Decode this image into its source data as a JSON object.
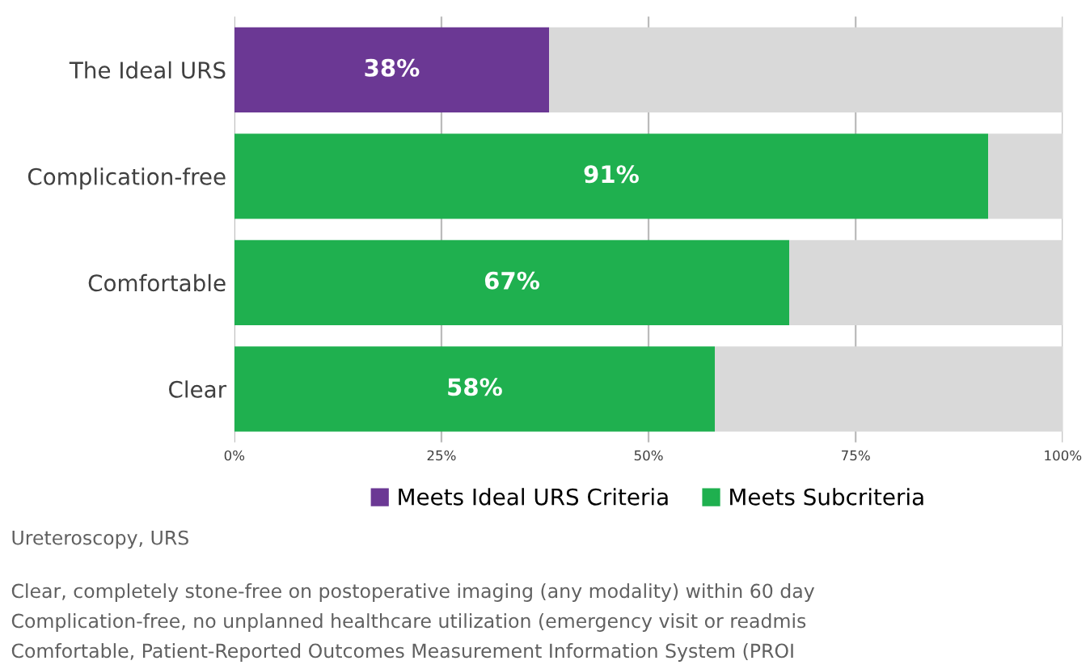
{
  "chart_data": {
    "type": "bar",
    "orientation": "horizontal",
    "stacked": true,
    "categories": [
      "The Ideal URS",
      "Complication-free",
      "Comfortable",
      "Clear"
    ],
    "series": [
      {
        "name": "Meets Ideal URS Criteria",
        "color": "#6b3894",
        "values": [
          38,
          null,
          null,
          null
        ],
        "value_labels": [
          "38%",
          null,
          null,
          null
        ]
      },
      {
        "name": "Meets Subcriteria",
        "color": "#1fb04f",
        "values": [
          null,
          91,
          67,
          58
        ],
        "value_labels": [
          null,
          "91%",
          "67%",
          "58%"
        ]
      },
      {
        "color": "#d9d9d9",
        "values": [
          62,
          9,
          33,
          42
        ]
      }
    ],
    "xlim": [
      0,
      100
    ],
    "xticks": [
      {
        "value": 0,
        "label": "0%"
      },
      {
        "value": 25,
        "label": "25%"
      },
      {
        "value": 50,
        "label": "50%"
      },
      {
        "value": 75,
        "label": "75%"
      },
      {
        "value": 100,
        "label": "100%"
      }
    ],
    "grid": "x",
    "legend": "bottom",
    "annotations": [
      "Ureteroscopy, URS",
      "Clear, completely stone-free on postoperative imaging (any modality) within 60 day",
      "Complication-free, no unplanned healthcare utilization (emergency visit or readmis",
      "Comfortable, Patient-Reported Outcomes Measurement Information System (PROI"
    ]
  }
}
